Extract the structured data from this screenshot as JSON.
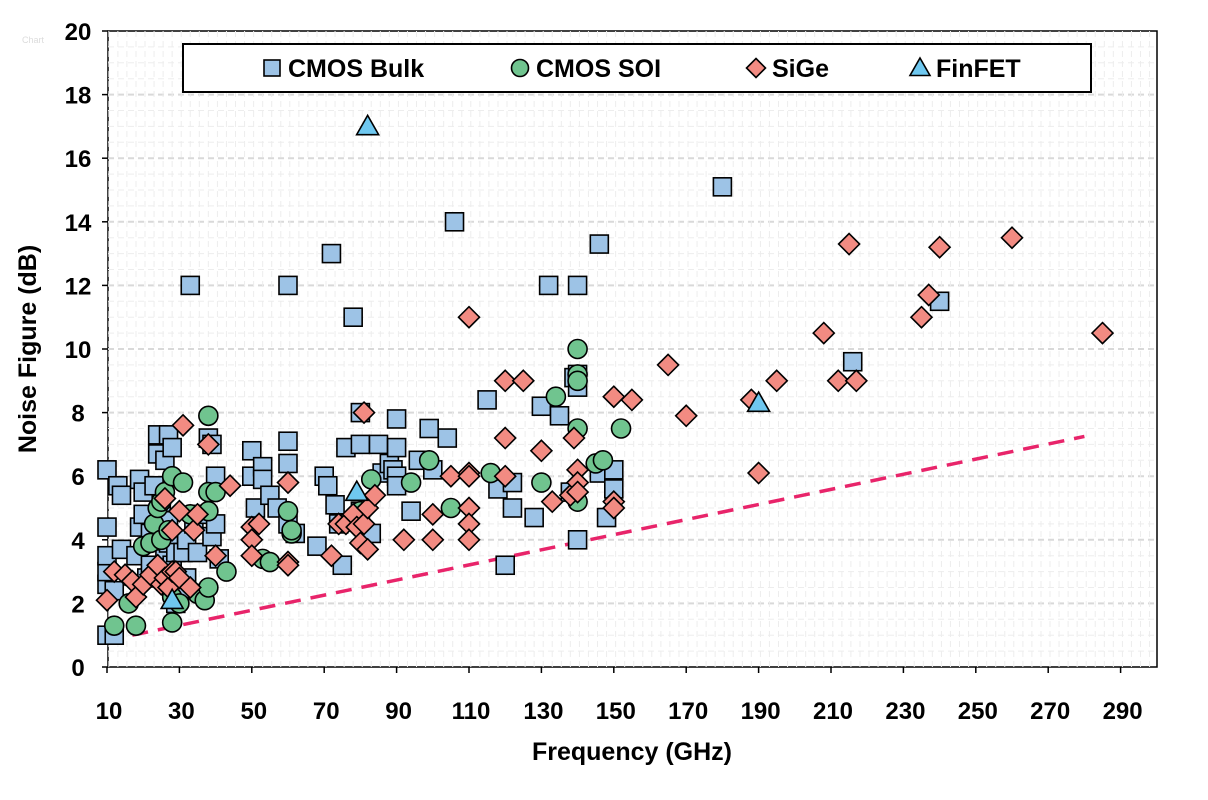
{
  "watermark": "Chart",
  "chart_data": {
    "type": "scatter",
    "xlabel": "Frequency (GHz)",
    "ylabel": "Noise Figure (dB)",
    "xlim": [
      8,
      300
    ],
    "ylim": [
      0,
      20
    ],
    "xticks": [
      10,
      30,
      50,
      70,
      90,
      110,
      130,
      150,
      170,
      190,
      210,
      230,
      250,
      270,
      290
    ],
    "yticks": [
      0,
      2,
      4,
      6,
      8,
      10,
      12,
      14,
      16,
      18,
      20
    ],
    "grid": true,
    "legend_position": "top",
    "series": [
      {
        "name": "CMOS Bulk",
        "marker": "square",
        "color": "#9dc3e6",
        "points": [
          [
            10,
            1.0
          ],
          [
            10,
            2.6
          ],
          [
            10,
            3.0
          ],
          [
            10,
            3.5
          ],
          [
            10,
            4.4
          ],
          [
            10,
            6.2
          ],
          [
            12,
            1.0
          ],
          [
            12,
            2.4
          ],
          [
            13,
            5.7
          ],
          [
            14,
            3.7
          ],
          [
            14,
            5.4
          ],
          [
            18,
            3.5
          ],
          [
            19,
            4.4
          ],
          [
            19,
            5.9
          ],
          [
            20,
            4.8
          ],
          [
            20,
            5.5
          ],
          [
            21,
            2.8
          ],
          [
            22,
            3.2
          ],
          [
            22,
            4.2
          ],
          [
            23,
            5.7
          ],
          [
            24,
            6.7
          ],
          [
            24,
            7.3
          ],
          [
            25,
            3.0
          ],
          [
            25,
            4.0
          ],
          [
            25,
            5.0
          ],
          [
            26,
            3.4
          ],
          [
            26,
            6.5
          ],
          [
            27,
            3.9
          ],
          [
            27,
            4.6
          ],
          [
            27,
            7.3
          ],
          [
            28,
            2.4
          ],
          [
            28,
            3.2
          ],
          [
            28,
            6.9
          ],
          [
            29,
            2.0
          ],
          [
            29,
            3.6
          ],
          [
            30,
            2.2
          ],
          [
            31,
            3.6
          ],
          [
            32,
            2.8
          ],
          [
            32,
            4.0
          ],
          [
            33,
            12.0
          ],
          [
            34,
            4.5
          ],
          [
            35,
            3.6
          ],
          [
            36,
            4.8
          ],
          [
            38,
            7.2
          ],
          [
            39,
            4.1
          ],
          [
            39,
            7.0
          ],
          [
            40,
            4.5
          ],
          [
            40,
            6.0
          ],
          [
            41,
            3.4
          ],
          [
            50,
            6.0
          ],
          [
            50,
            6.8
          ],
          [
            51,
            5.0
          ],
          [
            53,
            6.3
          ],
          [
            53,
            5.9
          ],
          [
            55,
            5.4
          ],
          [
            57,
            5.0
          ],
          [
            60,
            7.1
          ],
          [
            60,
            6.4
          ],
          [
            60,
            4.5
          ],
          [
            60,
            12.0
          ],
          [
            62,
            4.2
          ],
          [
            68,
            3.8
          ],
          [
            70,
            6.0
          ],
          [
            71,
            5.7
          ],
          [
            72,
            13.0
          ],
          [
            73,
            5.1
          ],
          [
            74,
            4.5
          ],
          [
            75,
            3.2
          ],
          [
            76,
            6.9
          ],
          [
            78,
            11.0
          ],
          [
            80,
            8.0
          ],
          [
            80,
            7.0
          ],
          [
            80,
            4.9
          ],
          [
            83,
            4.2
          ],
          [
            85,
            7.0
          ],
          [
            86,
            6.1
          ],
          [
            88,
            6.4
          ],
          [
            89,
            6.2
          ],
          [
            90,
            7.8
          ],
          [
            90,
            6.9
          ],
          [
            90,
            6.0
          ],
          [
            90,
            5.7
          ],
          [
            94,
            4.9
          ],
          [
            96,
            6.5
          ],
          [
            99,
            7.5
          ],
          [
            100,
            6.2
          ],
          [
            104,
            7.2
          ],
          [
            106,
            14.0
          ],
          [
            115,
            8.4
          ],
          [
            118,
            5.6
          ],
          [
            120,
            3.2
          ],
          [
            122,
            5.8
          ],
          [
            122,
            5.0
          ],
          [
            128,
            4.7
          ],
          [
            130,
            8.2
          ],
          [
            132,
            12.0
          ],
          [
            135,
            7.9
          ],
          [
            138,
            5.5
          ],
          [
            139,
            9.1
          ],
          [
            140,
            12.0
          ],
          [
            140,
            9.2
          ],
          [
            140,
            8.8
          ],
          [
            140,
            4.0
          ],
          [
            146,
            13.3
          ],
          [
            146,
            6.1
          ],
          [
            148,
            4.7
          ],
          [
            150,
            6.2
          ],
          [
            150,
            5.6
          ],
          [
            180,
            15.1
          ],
          [
            216,
            9.6
          ],
          [
            240,
            11.5
          ]
        ]
      },
      {
        "name": "CMOS SOI",
        "marker": "circle",
        "color": "#70c48f",
        "points": [
          [
            12,
            1.3
          ],
          [
            16,
            2.0
          ],
          [
            18,
            1.3
          ],
          [
            20,
            3.8
          ],
          [
            22,
            3.9
          ],
          [
            23,
            4.5
          ],
          [
            24,
            5.0
          ],
          [
            25,
            5.2
          ],
          [
            25,
            4.0
          ],
          [
            26,
            5.5
          ],
          [
            27,
            4.3
          ],
          [
            28,
            6.0
          ],
          [
            28,
            2.2
          ],
          [
            28,
            1.4
          ],
          [
            30,
            2.0
          ],
          [
            31,
            5.8
          ],
          [
            33,
            4.8
          ],
          [
            35,
            2.3
          ],
          [
            37,
            2.1
          ],
          [
            38,
            7.9
          ],
          [
            38,
            5.5
          ],
          [
            38,
            4.9
          ],
          [
            38,
            2.5
          ],
          [
            40,
            5.5
          ],
          [
            43,
            3.0
          ],
          [
            53,
            3.4
          ],
          [
            55,
            3.3
          ],
          [
            60,
            4.9
          ],
          [
            61,
            4.2
          ],
          [
            61,
            4.3
          ],
          [
            80,
            4.9
          ],
          [
            83,
            5.9
          ],
          [
            94,
            5.8
          ],
          [
            99,
            6.5
          ],
          [
            105,
            5.0
          ],
          [
            116,
            6.1
          ],
          [
            130,
            5.8
          ],
          [
            134,
            8.5
          ],
          [
            140,
            10.0
          ],
          [
            140,
            9.2
          ],
          [
            140,
            9.0
          ],
          [
            140,
            7.5
          ],
          [
            140,
            5.2
          ],
          [
            145,
            6.4
          ],
          [
            147,
            6.5
          ],
          [
            152,
            7.5
          ]
        ]
      },
      {
        "name": "SiGe",
        "marker": "diamond",
        "color": "#f28b82",
        "points": [
          [
            10,
            2.1
          ],
          [
            12,
            3.0
          ],
          [
            15,
            2.9
          ],
          [
            17,
            2.7
          ],
          [
            18,
            2.2
          ],
          [
            20,
            2.6
          ],
          [
            22,
            2.9
          ],
          [
            24,
            3.2
          ],
          [
            25,
            2.6
          ],
          [
            26,
            2.8
          ],
          [
            26,
            5.3
          ],
          [
            27,
            2.5
          ],
          [
            28,
            3.0
          ],
          [
            28,
            4.3
          ],
          [
            29,
            3.0
          ],
          [
            30,
            2.8
          ],
          [
            30,
            4.9
          ],
          [
            31,
            7.6
          ],
          [
            33,
            2.5
          ],
          [
            34,
            4.3
          ],
          [
            35,
            4.8
          ],
          [
            38,
            7.0
          ],
          [
            40,
            3.5
          ],
          [
            44,
            5.7
          ],
          [
            50,
            4.4
          ],
          [
            50,
            4.0
          ],
          [
            50,
            3.5
          ],
          [
            52,
            4.5
          ],
          [
            60,
            5.8
          ],
          [
            60,
            3.3
          ],
          [
            60,
            3.2
          ],
          [
            72,
            3.5
          ],
          [
            74,
            4.5
          ],
          [
            76,
            4.5
          ],
          [
            78,
            4.8
          ],
          [
            79,
            4.4
          ],
          [
            80,
            3.9
          ],
          [
            81,
            8.0
          ],
          [
            81,
            4.5
          ],
          [
            82,
            3.7
          ],
          [
            82,
            5.0
          ],
          [
            84,
            5.4
          ],
          [
            92,
            4.0
          ],
          [
            100,
            4.0
          ],
          [
            100,
            4.8
          ],
          [
            105,
            6.0
          ],
          [
            110,
            11.0
          ],
          [
            110,
            6.1
          ],
          [
            110,
            6.0
          ],
          [
            110,
            5.0
          ],
          [
            110,
            4.5
          ],
          [
            110,
            4.0
          ],
          [
            120,
            9.0
          ],
          [
            120,
            7.2
          ],
          [
            120,
            6.0
          ],
          [
            125,
            9.0
          ],
          [
            130,
            6.8
          ],
          [
            133,
            5.2
          ],
          [
            138,
            5.4
          ],
          [
            139,
            7.2
          ],
          [
            140,
            6.2
          ],
          [
            140,
            5.8
          ],
          [
            140,
            5.5
          ],
          [
            150,
            8.5
          ],
          [
            150,
            5.2
          ],
          [
            150,
            5.0
          ],
          [
            155,
            8.4
          ],
          [
            165,
            9.5
          ],
          [
            170,
            7.9
          ],
          [
            188,
            8.4
          ],
          [
            190,
            6.1
          ],
          [
            195,
            9.0
          ],
          [
            208,
            10.5
          ],
          [
            212,
            9.0
          ],
          [
            215,
            13.3
          ],
          [
            217,
            9.0
          ],
          [
            235,
            11.0
          ],
          [
            237,
            11.7
          ],
          [
            240,
            13.2
          ],
          [
            260,
            13.5
          ],
          [
            285,
            10.5
          ]
        ]
      },
      {
        "name": "FinFET",
        "marker": "triangle",
        "color": "#6fc8f0",
        "points": [
          [
            28,
            2.1
          ],
          [
            79,
            5.5
          ],
          [
            82,
            17.0
          ],
          [
            190,
            8.3
          ]
        ]
      }
    ],
    "trendline": {
      "style": "dashed",
      "color": "#e8246a",
      "points": [
        [
          17,
          1.0
        ],
        [
          280,
          7.25
        ]
      ]
    }
  }
}
